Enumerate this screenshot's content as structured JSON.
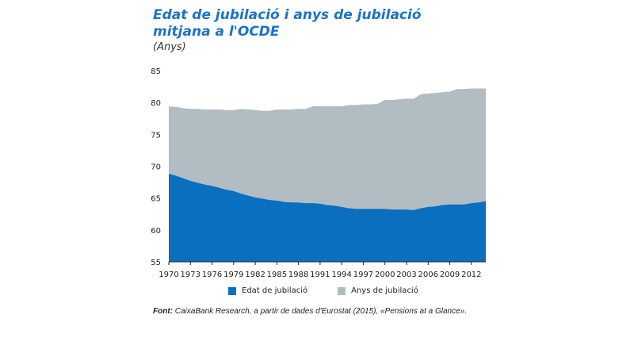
{
  "chart_data": {
    "type": "area",
    "title_lines": [
      "Edat de jubilació i anys de jubilació",
      "mitjana a l'OCDE"
    ],
    "subtitle": "(Anys)",
    "ylim": [
      55,
      85
    ],
    "yticks": [
      55,
      60,
      65,
      70,
      75,
      80,
      85
    ],
    "xlim": [
      1970,
      2014
    ],
    "x_tick_labels": [
      "1970",
      "1973",
      "1976",
      "1979",
      "1982",
      "1985",
      "1988",
      "1991",
      "1994",
      "1997",
      "2000",
      "2003",
      "2006",
      "2009",
      "2012"
    ],
    "x": [
      1970,
      1971,
      1972,
      1973,
      1974,
      1975,
      1976,
      1977,
      1978,
      1979,
      1980,
      1981,
      1982,
      1983,
      1984,
      1985,
      1986,
      1987,
      1988,
      1989,
      1990,
      1991,
      1992,
      1993,
      1994,
      1995,
      1996,
      1997,
      1998,
      1999,
      2000,
      2001,
      2002,
      2003,
      2004,
      2005,
      2006,
      2007,
      2008,
      2009,
      2010,
      2011,
      2012,
      2013,
      2014
    ],
    "series": [
      {
        "name": "Edat de jubilació",
        "color": "#0a6fbf",
        "values": [
          68.8,
          68.5,
          68.1,
          67.7,
          67.4,
          67.1,
          66.9,
          66.6,
          66.3,
          66.1,
          65.7,
          65.4,
          65.1,
          64.9,
          64.7,
          64.6,
          64.4,
          64.3,
          64.3,
          64.2,
          64.2,
          64.1,
          63.9,
          63.8,
          63.6,
          63.4,
          63.3,
          63.3,
          63.3,
          63.3,
          63.3,
          63.2,
          63.2,
          63.2,
          63.1,
          63.4,
          63.6,
          63.7,
          63.9,
          64.0,
          64.0,
          64.0,
          64.2,
          64.3,
          64.5
        ]
      },
      {
        "name": "Anys de jubilació",
        "color": "#b1bcc3",
        "total_values": [
          79.4,
          79.3,
          79.1,
          79.0,
          79.0,
          78.9,
          78.9,
          78.9,
          78.8,
          78.8,
          79.0,
          78.9,
          78.8,
          78.7,
          78.7,
          78.9,
          78.9,
          78.9,
          79.0,
          79.0,
          79.4,
          79.4,
          79.4,
          79.4,
          79.4,
          79.6,
          79.6,
          79.7,
          79.7,
          79.8,
          80.4,
          80.4,
          80.5,
          80.6,
          80.6,
          81.3,
          81.4,
          81.5,
          81.6,
          81.7,
          82.1,
          82.1,
          82.2,
          82.2,
          82.2
        ]
      }
    ],
    "legend": [
      "Edat de jubilació",
      "Anys de jubilació"
    ]
  },
  "source": {
    "label": "Font:",
    "text": " CaixaBank Research, a partir de dades d'Eurostat (2015), «Pensions at a Glance»."
  }
}
